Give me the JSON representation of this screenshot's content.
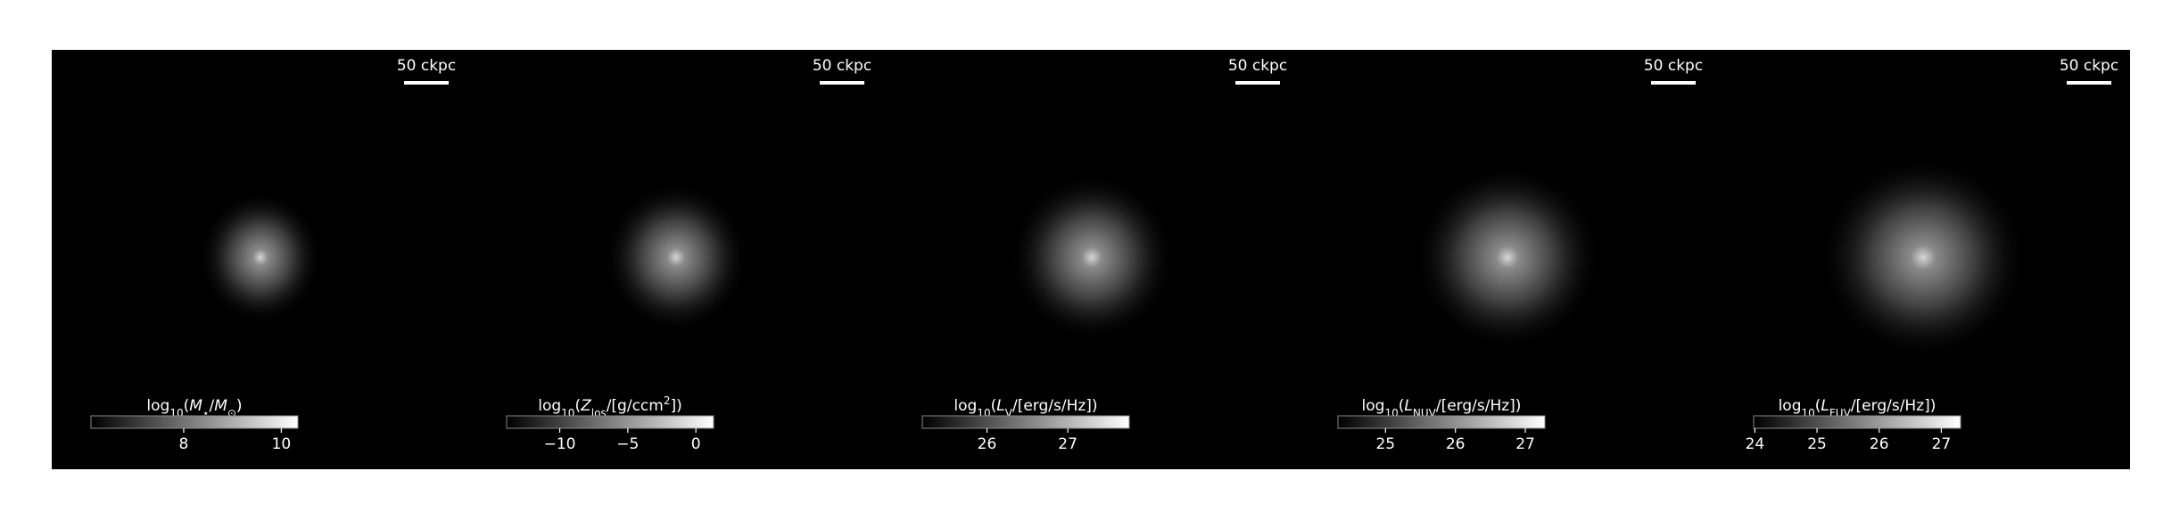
{
  "chart_data": [
    {
      "type": "image",
      "scalebar": "50 ckpc",
      "colorbar_label": [
        {
          "t": "log",
          "s": "n"
        },
        {
          "t": "10",
          "s": "sub"
        },
        {
          "t": "(",
          "s": "n"
        },
        {
          "t": "M",
          "s": "i"
        },
        {
          "t": "⋆",
          "s": "sub"
        },
        {
          "t": "/",
          "s": "n"
        },
        {
          "t": "M",
          "s": "i"
        },
        {
          "t": "⊙",
          "s": "sub"
        },
        {
          "t": ")",
          "s": "n"
        }
      ],
      "clim": [
        6.1,
        10.34
      ],
      "cticks": [
        8,
        10
      ]
    },
    {
      "type": "image",
      "scalebar": "50 ckpc",
      "colorbar_label": [
        {
          "t": "log",
          "s": "n"
        },
        {
          "t": "10",
          "s": "sub"
        },
        {
          "t": "(",
          "s": "n"
        },
        {
          "t": "Z",
          "s": "i"
        },
        {
          "t": "los",
          "s": "sub"
        },
        {
          "t": "/[g/ccm",
          "s": "n"
        },
        {
          "t": "2",
          "s": "sup"
        },
        {
          "t": "])",
          "s": "n"
        }
      ],
      "clim": [
        -13.9,
        1.3
      ],
      "cticks": [
        {
          "value": -10,
          "label": "−10"
        },
        {
          "value": -5,
          "label": "−5"
        },
        0
      ]
    },
    {
      "type": "image",
      "scalebar": "50 ckpc",
      "colorbar_label": [
        {
          "t": "log",
          "s": "n"
        },
        {
          "t": "10",
          "s": "sub"
        },
        {
          "t": "(",
          "s": "n"
        },
        {
          "t": "L",
          "s": "i"
        },
        {
          "t": "V",
          "s": "sub"
        },
        {
          "t": "/[erg/s/Hz])",
          "s": "n"
        }
      ],
      "clim": [
        25.2,
        27.76
      ],
      "cticks": [
        26,
        27
      ]
    },
    {
      "type": "image",
      "scalebar": "50 ckpc",
      "colorbar_label": [
        {
          "t": "log",
          "s": "n"
        },
        {
          "t": "10",
          "s": "sub"
        },
        {
          "t": "(",
          "s": "n"
        },
        {
          "t": "L",
          "s": "i"
        },
        {
          "t": "NUV",
          "s": "sub"
        },
        {
          "t": "/[erg/s/Hz])",
          "s": "n"
        }
      ],
      "clim": [
        24.32,
        27.28
      ],
      "cticks": [
        25,
        26,
        27
      ]
    },
    {
      "type": "image",
      "scalebar": "50 ckpc",
      "colorbar_label": [
        {
          "t": "log",
          "s": "n"
        },
        {
          "t": "10",
          "s": "sub"
        },
        {
          "t": "(",
          "s": "n"
        },
        {
          "t": "L",
          "s": "i"
        },
        {
          "t": "FUV",
          "s": "sub"
        },
        {
          "t": "/[erg/s/Hz])",
          "s": "n"
        }
      ],
      "clim": [
        23.98,
        27.31
      ],
      "cticks": [
        24,
        25,
        26,
        27
      ]
    }
  ]
}
